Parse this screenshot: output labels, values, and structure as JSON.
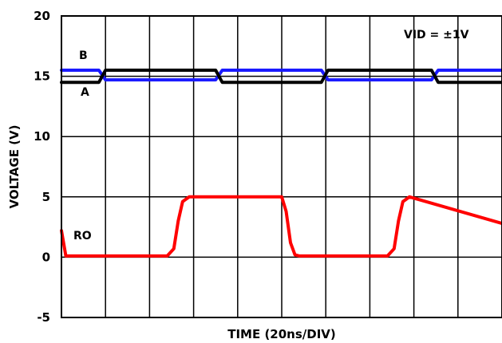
{
  "chart_data": {
    "type": "line",
    "xlabel": "TIME (20ns/DIV)",
    "ylabel": "VOLTAGE (V)",
    "ylim": [
      -5,
      20
    ],
    "yticks": [
      -5,
      0,
      5,
      10,
      15,
      20
    ],
    "xlim": [
      0,
      200
    ],
    "x_divisions": 10,
    "grid": true,
    "annotation": "VID = ±1V",
    "series": [
      {
        "name": "B",
        "color": "#1a1aff",
        "x": [
          0,
          17,
          20,
          70,
          73,
          118,
          121,
          168,
          171,
          200
        ],
        "values": [
          15.5,
          15.5,
          14.7,
          14.7,
          15.5,
          15.5,
          14.7,
          14.7,
          15.5,
          15.5
        ]
      },
      {
        "name": "A",
        "color": "#000000",
        "x": [
          0,
          17,
          20,
          70,
          73,
          118,
          121,
          168,
          171,
          200
        ],
        "values": [
          14.5,
          14.5,
          15.5,
          15.5,
          14.5,
          14.5,
          15.5,
          15.5,
          14.5,
          14.5
        ]
      },
      {
        "name": "RO",
        "color": "#ff0000",
        "x": [
          0,
          2,
          48,
          51,
          53,
          55,
          58,
          100,
          102,
          104,
          106,
          108,
          148,
          151,
          153,
          155,
          158,
          200
        ],
        "values": [
          2.2,
          0.1,
          0.1,
          0.7,
          3.0,
          4.6,
          5.0,
          5.0,
          3.8,
          1.2,
          0.2,
          0.1,
          0.1,
          0.7,
          3.0,
          4.6,
          5.0,
          2.8
        ]
      }
    ]
  }
}
